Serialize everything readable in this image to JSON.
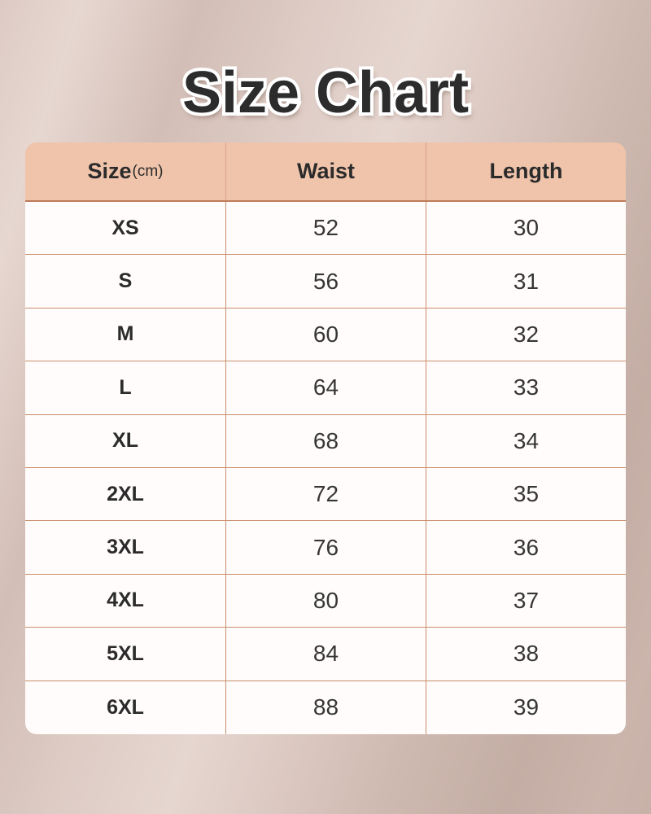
{
  "title": {
    "text": "Size Chart"
  },
  "table": {
    "header": {
      "size_label": "Size",
      "size_unit": "(cm)",
      "waist_label": "Waist",
      "length_label": "Length"
    }
  },
  "chart_data": {
    "type": "table",
    "title": "Size Chart",
    "units": "cm",
    "columns": [
      "Size(cm)",
      "Waist",
      "Length"
    ],
    "rows": [
      [
        "XS",
        52,
        30
      ],
      [
        "S",
        56,
        31
      ],
      [
        "M",
        60,
        32
      ],
      [
        "L",
        64,
        33
      ],
      [
        "XL",
        68,
        34
      ],
      [
        "2XL",
        72,
        35
      ],
      [
        "3XL",
        76,
        36
      ],
      [
        "4XL",
        80,
        37
      ],
      [
        "5XL",
        84,
        38
      ],
      [
        "6XL",
        88,
        39
      ]
    ]
  },
  "colors": {
    "header_bg": "#EFC4AB",
    "header_divider": "#D9A285",
    "header_bottom_border": "#BE7B57",
    "grid_line": "#C98E6B",
    "cell_bg": "#FFFCFB",
    "title_color": "#2C2C2C",
    "title_outline": "#FFFFFF",
    "text_color": "#363636",
    "background_light": "#E6D6D0",
    "background_dark": "#C3ADA4"
  }
}
